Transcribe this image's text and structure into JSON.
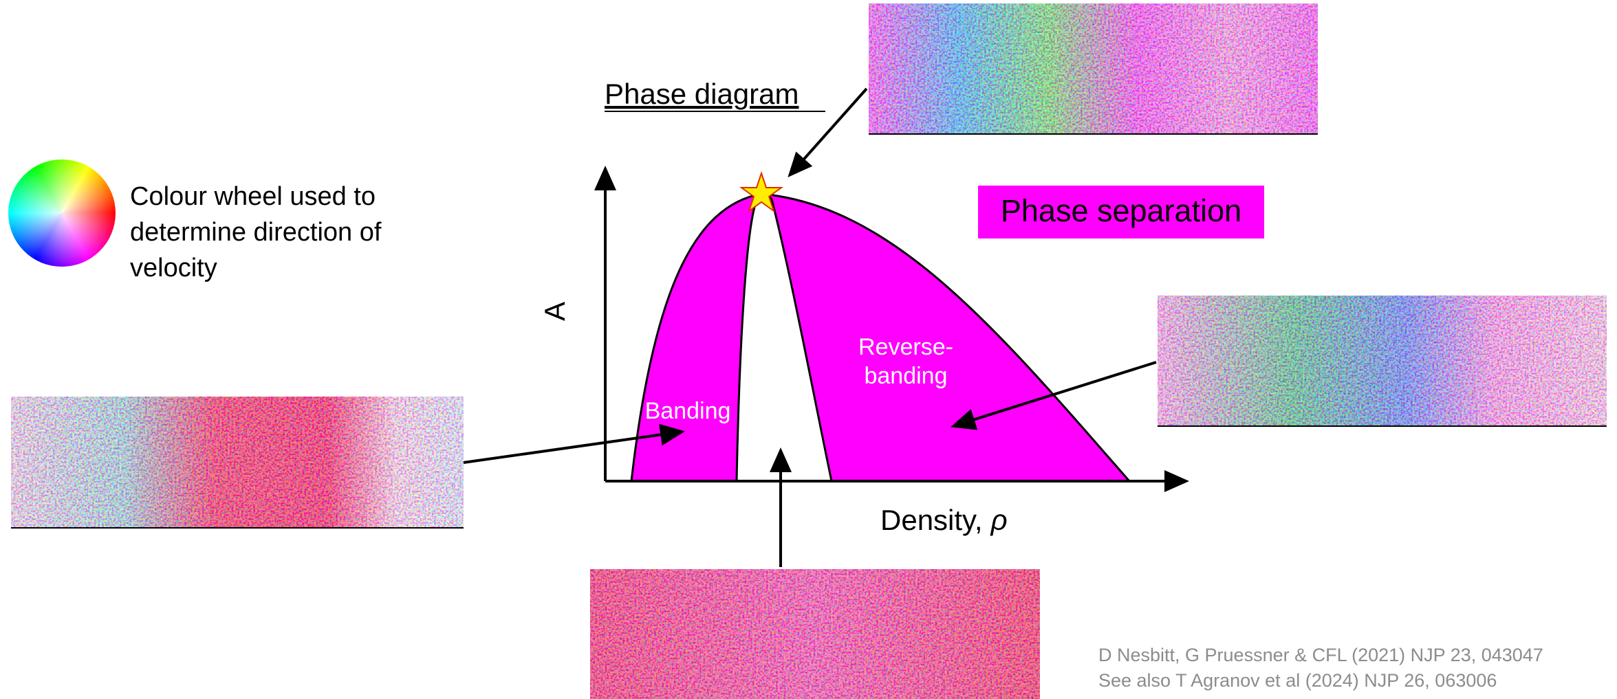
{
  "title": "Phase diagram",
  "colour_wheel": {
    "caption_lines": [
      "Colour wheel used to",
      "determine direction of",
      "velocity"
    ]
  },
  "diagram": {
    "y_axis_label": "A",
    "x_axis_label": "Density,",
    "x_axis_symbol": "ρ",
    "regions": {
      "banding": "Banding",
      "reverse_banding": [
        "Reverse-",
        "banding"
      ],
      "phase_separation": "Phase separation"
    }
  },
  "references": [
    "D Nesbitt, G Pruessner & CFL (2021) NJP 23, 043047",
    "See also T Agranov et al (2024) NJP 26, 063006"
  ]
}
